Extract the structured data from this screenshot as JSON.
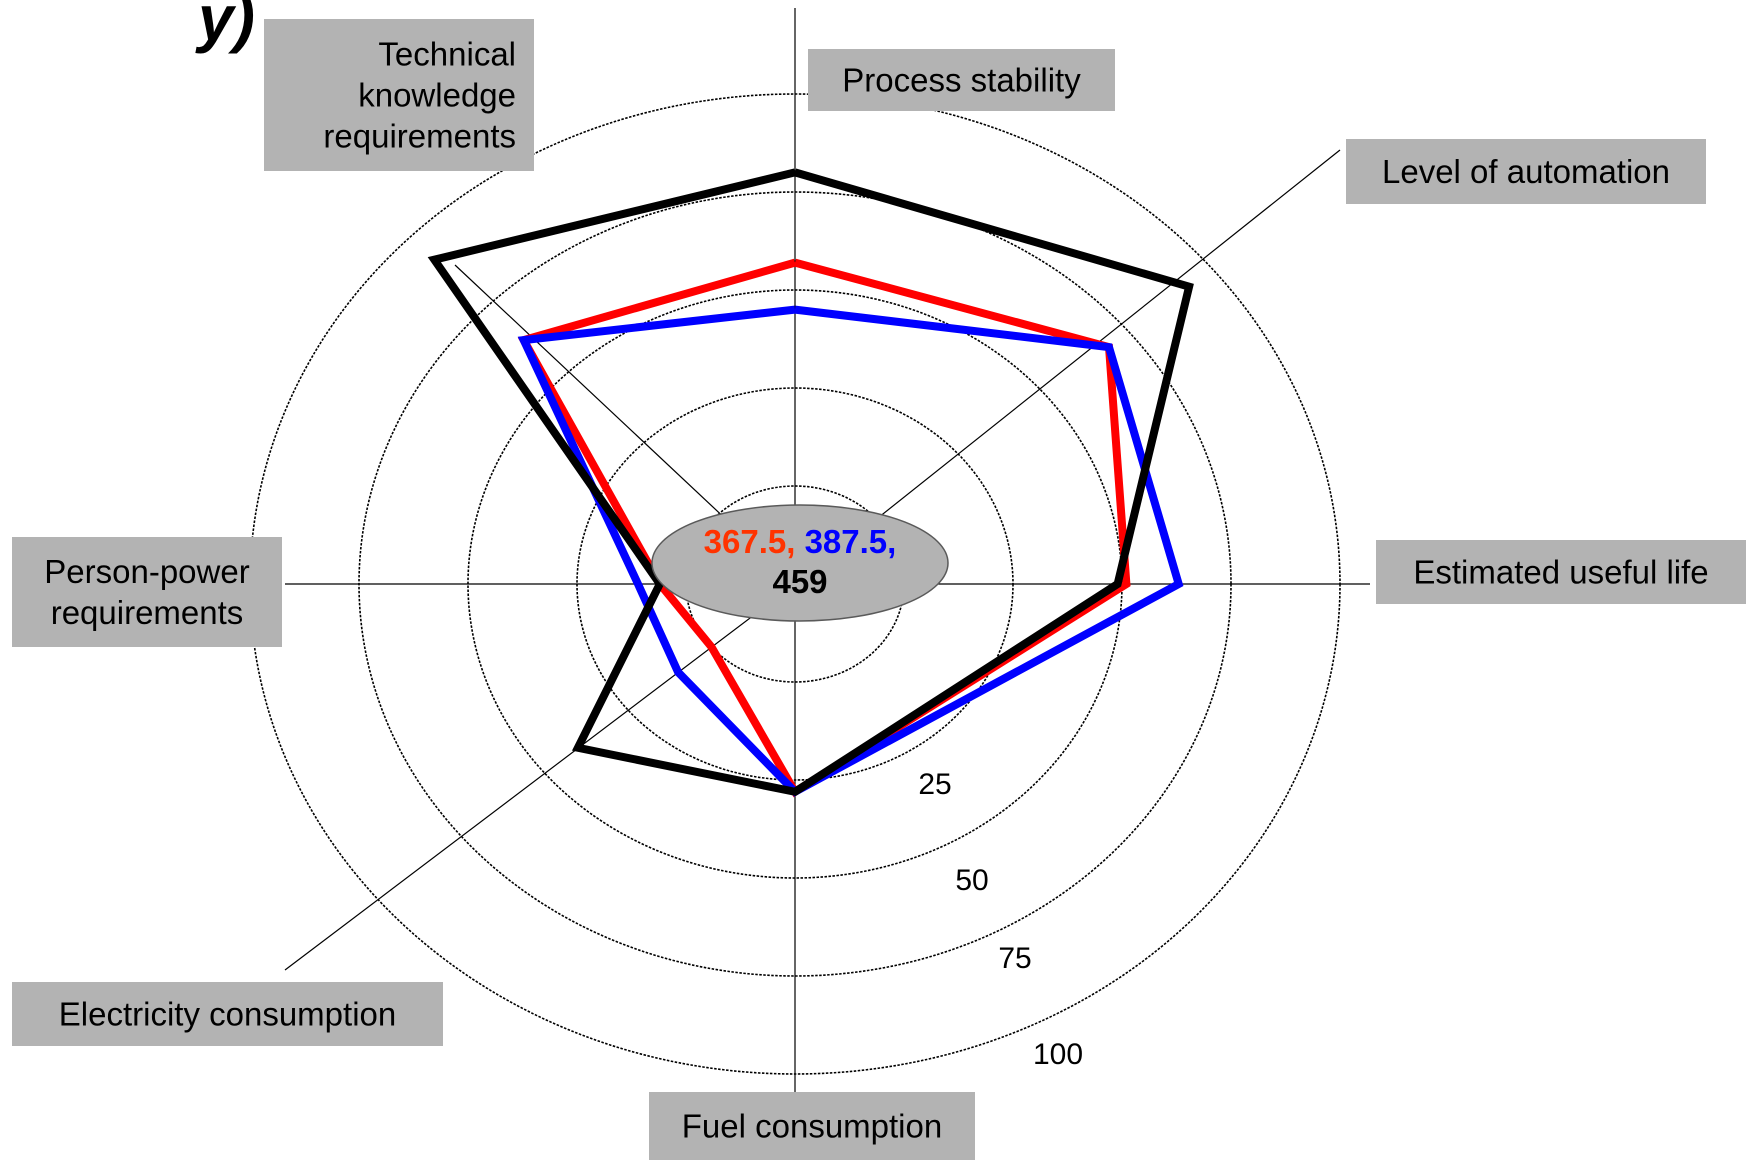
{
  "chart_data": {
    "type": "radar",
    "title_fragment": "y)",
    "categories": [
      "Process stability",
      "Level of automation",
      "Estimated useful life",
      "Fuel consumption",
      "Electricity consumption",
      "Person-power requirements",
      "Technical knowledge requirements"
    ],
    "category_label_lines": [
      [
        "Process stability"
      ],
      [
        "Level of automation"
      ],
      [
        "Estimated useful life"
      ],
      [
        "Fuel consumption"
      ],
      [
        "Electricity consumption"
      ],
      [
        "Person-power",
        "requirements"
      ],
      [
        "Technical",
        "knowledge",
        "requirements"
      ]
    ],
    "radial_ticks": [
      "25",
      "50",
      "75",
      "100"
    ],
    "rlim": [
      0,
      125
    ],
    "grid": true,
    "series": [
      {
        "color": "#ff0000",
        "values": [
          82,
          94,
          76,
          53,
          25,
          31,
          88
        ]
      },
      {
        "color": "#0000ff",
        "values": [
          70,
          94,
          88,
          53,
          35,
          36,
          88
        ]
      },
      {
        "color": "#000000",
        "values": [
          105,
          118,
          74,
          53,
          65,
          31,
          117
        ]
      }
    ],
    "center_totals": [
      {
        "text": "367.5,",
        "color": "#ff3300"
      },
      {
        "text": "387.5,",
        "color": "#0000ff"
      },
      {
        "text": "459",
        "color": "#000000"
      }
    ]
  }
}
